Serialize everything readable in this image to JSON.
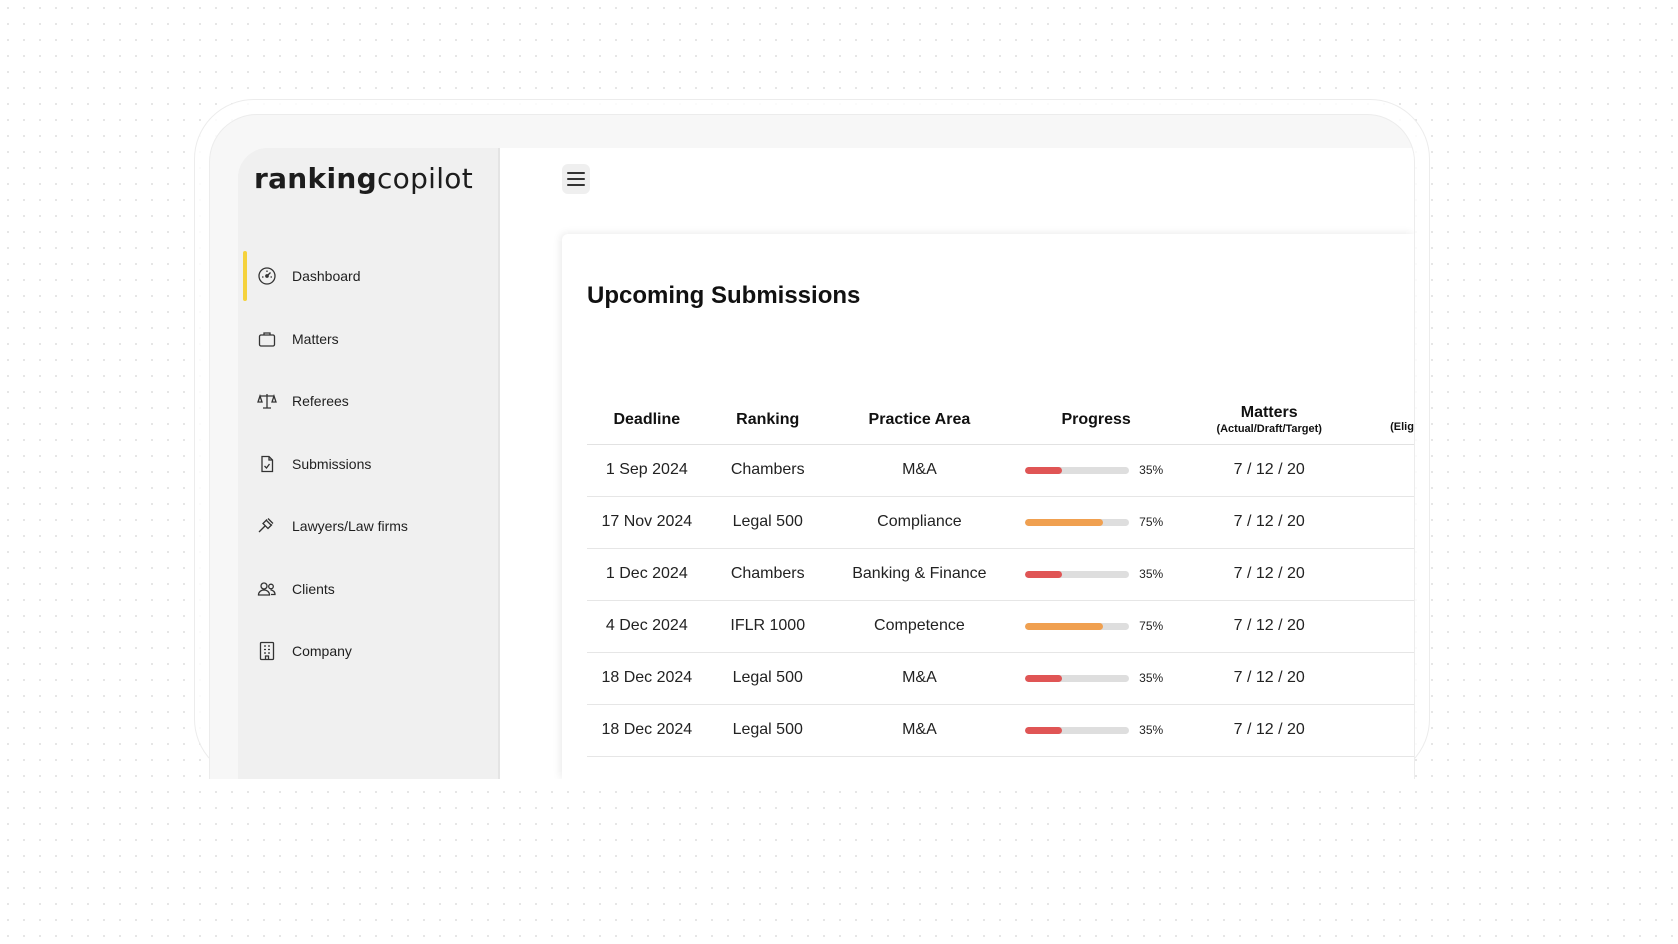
{
  "app": {
    "logo_bold": "ranking",
    "logo_light": "copilot"
  },
  "colors": {
    "accent": "#f5d23c",
    "progress_low": "#e05555",
    "progress_mid": "#f0a050"
  },
  "sidebar": {
    "items": [
      {
        "label": "Dashboard",
        "icon": "dashboard-icon",
        "active": true
      },
      {
        "label": "Matters",
        "icon": "briefcase-icon"
      },
      {
        "label": "Referees",
        "icon": "scales-icon"
      },
      {
        "label": "Submissions",
        "icon": "document-icon"
      },
      {
        "label": "Lawyers/Law firms",
        "icon": "gavel-icon"
      },
      {
        "label": "Clients",
        "icon": "users-icon"
      },
      {
        "label": "Company",
        "icon": "building-icon"
      }
    ]
  },
  "header": {
    "menu_icon": "menu-icon"
  },
  "submissions": {
    "title": "Upcoming Submissions",
    "columns": {
      "deadline": "Deadline",
      "ranking": "Ranking",
      "practice_area": "Practice Area",
      "progress": "Progress",
      "matters": "Matters",
      "matters_sub": "(Actual/Draft/Target)",
      "eligibility_partial": "(Elig"
    },
    "rows": [
      {
        "deadline": "1 Sep 2024",
        "ranking": "Chambers",
        "practice_area": "M&A",
        "progress": 35,
        "progress_label": "35%",
        "matters": "7 / 12 / 20"
      },
      {
        "deadline": "17 Nov 2024",
        "ranking": "Legal 500",
        "practice_area": "Compliance",
        "progress": 75,
        "progress_label": "75%",
        "matters": "7 / 12 / 20"
      },
      {
        "deadline": "1 Dec 2024",
        "ranking": "Chambers",
        "practice_area": "Banking & Finance",
        "progress": 35,
        "progress_label": "35%",
        "matters": "7 / 12 / 20"
      },
      {
        "deadline": "4 Dec 2024",
        "ranking": "IFLR 1000",
        "practice_area": "Competence",
        "progress": 75,
        "progress_label": "75%",
        "matters": "7 / 12 / 20"
      },
      {
        "deadline": "18 Dec 2024",
        "ranking": "Legal 500",
        "practice_area": "M&A",
        "progress": 35,
        "progress_label": "35%",
        "matters": "7 / 12 / 20"
      },
      {
        "deadline": "18 Dec 2024",
        "ranking": "Legal 500",
        "practice_area": "M&A",
        "progress": 35,
        "progress_label": "35%",
        "matters": "7 / 12 / 20"
      }
    ]
  }
}
